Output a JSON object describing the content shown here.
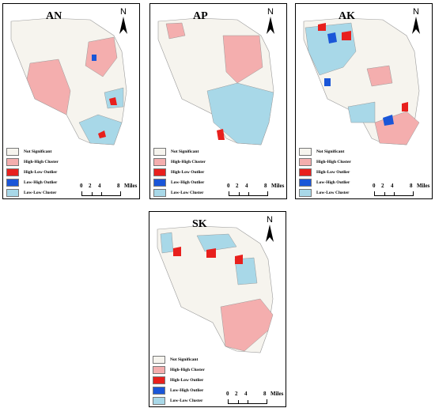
{
  "legend_labels": [
    "Not Significant",
    "High-High Cluster",
    "High-Low Outlier",
    "Low-High Outlier",
    "Low-Low Cluster"
  ],
  "legend_colors": [
    "#f6f4ee",
    "#f4aeae",
    "#e8201d",
    "#1a56d8",
    "#a8d8e8"
  ],
  "north_label": "N",
  "scale": {
    "zero": "0",
    "two": "2",
    "four": "4",
    "eight": "8",
    "unit": "Miles"
  },
  "panels": [
    {
      "id": "an",
      "title": "AN"
    },
    {
      "id": "ap",
      "title": "AP"
    },
    {
      "id": "ak",
      "title": "AK"
    },
    {
      "id": "sk",
      "title": "SK"
    }
  ]
}
